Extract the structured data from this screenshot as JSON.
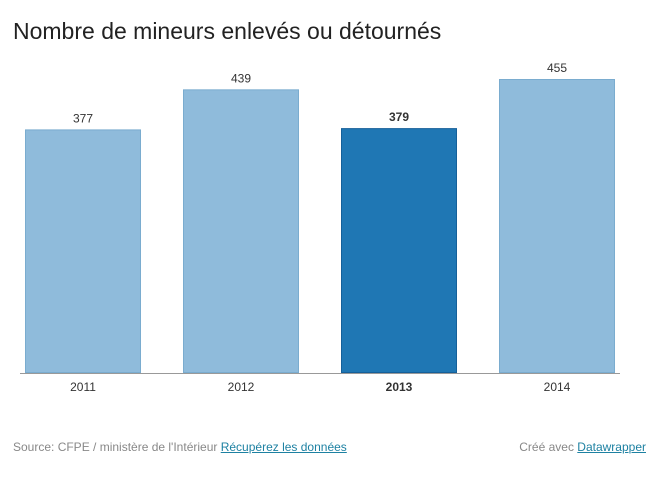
{
  "chart_data": {
    "type": "bar",
    "title": "Nombre de mineurs enlevés ou détournés",
    "categories": [
      "2011",
      "2012",
      "2013",
      "2014"
    ],
    "values": [
      377,
      439,
      379,
      455
    ],
    "highlight_category": "2013",
    "xlabel": "",
    "ylabel": "",
    "ylim": [
      0,
      455
    ],
    "grid": false,
    "legend": "none"
  },
  "colors": {
    "bar": "#8fbbdb",
    "bar_stroke": "#7aaccf",
    "highlight": "#1f77b4",
    "highlight_stroke": "#15609a"
  },
  "footer": {
    "source_label": "Source: CFPE / ministère de l'Intérieur",
    "data_link": "Récupérez les données",
    "credit_label": "Créé avec",
    "credit_link": "Datawrapper"
  }
}
